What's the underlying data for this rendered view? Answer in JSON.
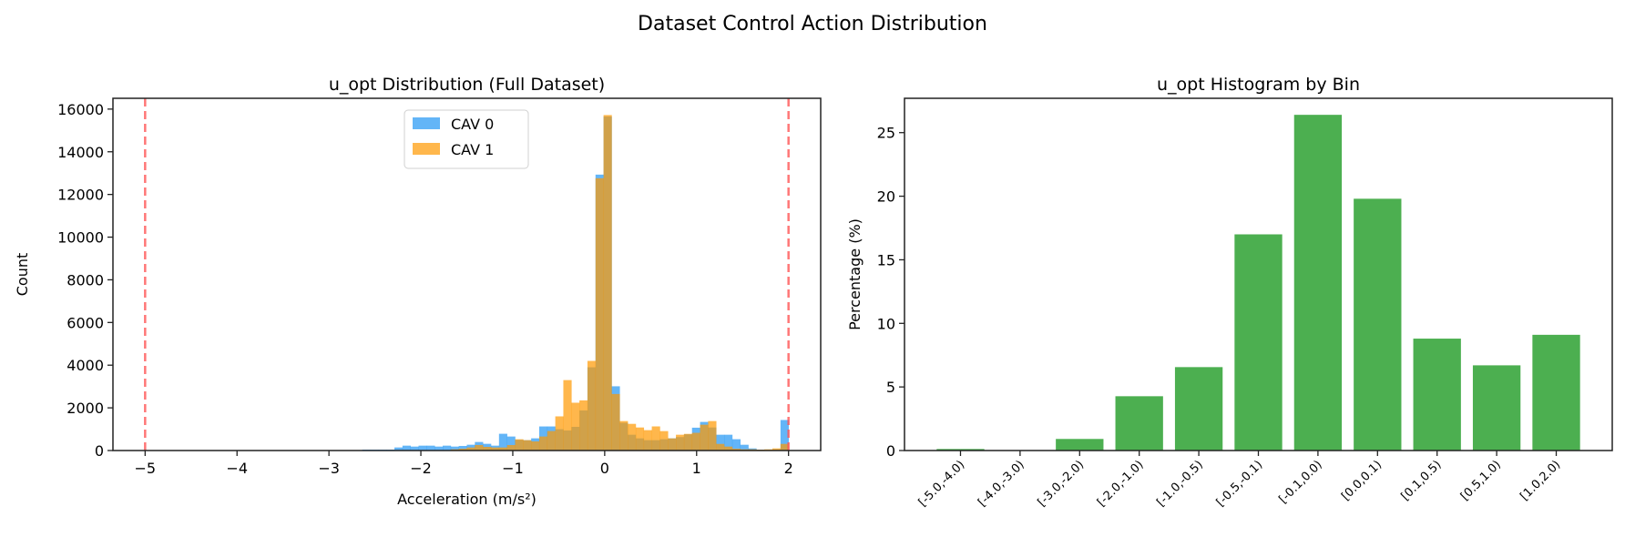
{
  "suptitle": "Dataset Control Action Distribution",
  "chart_data": [
    {
      "type": "histogram",
      "title": "u_opt Distribution (Full Dataset)",
      "xlabel": "Acceleration (m/s²)",
      "ylabel": "Count",
      "xlim": [
        -5.35,
        2.35
      ],
      "ylim": [
        0,
        16506
      ],
      "xticks": [
        -5,
        -4,
        -3,
        -2,
        -1,
        0,
        1,
        2
      ],
      "yticks": [
        0,
        2000,
        4000,
        6000,
        8000,
        10000,
        12000,
        14000,
        16000
      ],
      "bin_range": [
        -5,
        2
      ],
      "bin_count": 80,
      "legend_position": "upper-center",
      "grid": false,
      "reference_lines": [
        {
          "x": -5,
          "style": "dashed",
          "color": "#ff5555"
        },
        {
          "x": 2,
          "style": "dashed",
          "color": "#ff5555"
        }
      ],
      "series": [
        {
          "name": "CAV 0",
          "color": "#2196F3",
          "counts_from_bin_27": [
            43,
            43,
            43,
            43,
            143,
            228,
            185,
            228,
            228,
            185,
            228,
            185,
            214,
            271,
            400,
            314,
            228,
            785,
            656,
            500,
            485,
            571,
            1128,
            1128,
            1000,
            940,
            1110,
            1880,
            3900,
            12930,
            15650,
            3010,
            1300,
            740,
            570,
            485,
            485,
            530,
            570,
            630,
            760,
            1070,
            1340,
            1080,
            740,
            740,
            530,
            270,
            100,
            43,
            29,
            43,
            1430
          ]
        },
        {
          "name": "CAV 1",
          "color": "#FF9800",
          "counts_from_bin_27": [
            0,
            0,
            0,
            0,
            0,
            0,
            0,
            0,
            0,
            0,
            0,
            57,
            86,
            143,
            257,
            171,
            143,
            143,
            257,
            528,
            485,
            428,
            657,
            914,
            1600,
            3300,
            2240,
            2350,
            4200,
            12760,
            15720,
            2650,
            1380,
            1250,
            1080,
            955,
            1130,
            910,
            570,
            740,
            780,
            830,
            1210,
            1380,
            310,
            185,
            85,
            57,
            57,
            43,
            57,
            100,
            310
          ]
        }
      ]
    },
    {
      "type": "bar",
      "title": "u_opt Histogram by Bin",
      "xlabel": "",
      "ylabel": "Percentage (%)",
      "ylim": [
        0,
        27.7
      ],
      "yticks": [
        0,
        5,
        10,
        15,
        20,
        25
      ],
      "grid": false,
      "color": "#4CAF50",
      "categories": [
        "[-5.0,-4.0)",
        "[-4.0,-3.0)",
        "[-3.0,-2.0)",
        "[-2.0,-1.0)",
        "[-1.0,-0.5)",
        "[-0.5,-0.1)",
        "[-0.1,0.0)",
        "[0.0,0.1)",
        "[0.1,0.5)",
        "[0.5,1.0)",
        "[1.0,2.0)"
      ],
      "values": [
        0.12,
        0.02,
        0.91,
        4.27,
        6.56,
        17.0,
        26.4,
        19.8,
        8.8,
        6.7,
        9.1
      ]
    }
  ]
}
